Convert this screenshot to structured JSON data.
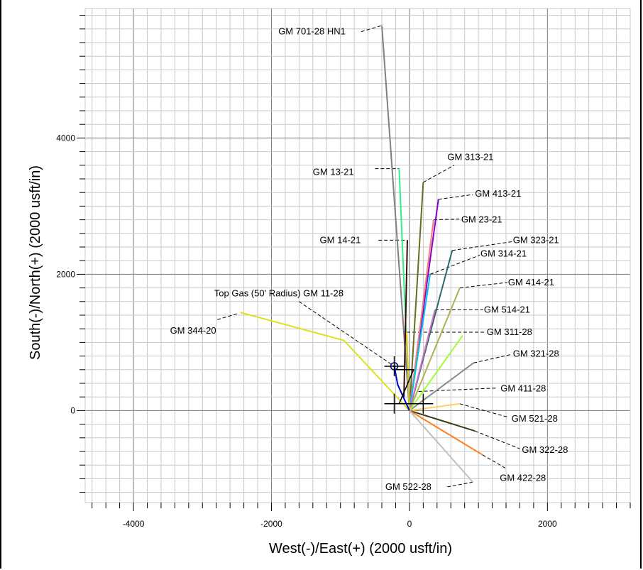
{
  "chart_data": {
    "type": "line",
    "title": "",
    "xlabel": "West(-)/East(+) (2000 usft/in)",
    "ylabel": "South(-)/North(+) (2000 usft/in)",
    "xlim": [
      -4700,
      3200
    ],
    "ylim": [
      -1350,
      5900
    ],
    "x_ticks": [
      -4000,
      -2000,
      0,
      2000
    ],
    "y_ticks": [
      0,
      2000,
      4000
    ],
    "x_tick_labels": [
      "-4000",
      "-2000",
      "0",
      "2000"
    ],
    "y_tick_labels": [
      "0",
      "2000",
      "4000"
    ],
    "grid": true,
    "series": [
      {
        "name": "GM 701-28 HN1",
        "color": "#808080",
        "points": [
          [
            0,
            0
          ],
          [
            -400,
            5650
          ]
        ],
        "label_pos": [
          -1900,
          5560
        ],
        "leader": [
          [
            -700,
            5560
          ],
          [
            -400,
            5650
          ]
        ]
      },
      {
        "name": "GM 13-21",
        "color": "#33ee88",
        "points": [
          [
            0,
            0
          ],
          [
            -150,
            3550
          ]
        ],
        "label_pos": [
          -1400,
          3500
        ],
        "leader": [
          [
            -500,
            3550
          ],
          [
            -150,
            3550
          ]
        ]
      },
      {
        "name": "GM 313-21",
        "color": "#6b6b20",
        "points": [
          [
            0,
            0
          ],
          [
            200,
            3350
          ]
        ],
        "label_pos": [
          550,
          3720
        ],
        "leader": [
          [
            200,
            3350
          ],
          [
            650,
            3600
          ]
        ]
      },
      {
        "name": "GM 413-21",
        "color": "#8a00c8",
        "points": [
          [
            0,
            0
          ],
          [
            420,
            3100
          ]
        ],
        "label_pos": [
          950,
          3180
        ],
        "leader": [
          [
            420,
            3100
          ],
          [
            920,
            3170
          ]
        ]
      },
      {
        "name": "GM 23-21",
        "color": "#f08080",
        "points": [
          [
            0,
            0
          ],
          [
            350,
            2800
          ]
        ],
        "label_pos": [
          750,
          2800
        ],
        "leader": [
          [
            350,
            2800
          ],
          [
            720,
            2810
          ]
        ]
      },
      {
        "name": "GM 14-21",
        "color": "#3a0a0a",
        "points": [
          [
            -80,
            200
          ],
          [
            -30,
            2500
          ]
        ],
        "label_pos": [
          -1300,
          2500
        ],
        "leader": [
          [
            -450,
            2500
          ],
          [
            -30,
            2500
          ]
        ]
      },
      {
        "name": "GM 323-21",
        "color": "#2a6a6a",
        "points": [
          [
            0,
            0
          ],
          [
            620,
            2350
          ]
        ],
        "label_pos": [
          1500,
          2500
        ],
        "leader": [
          [
            620,
            2350
          ],
          [
            1500,
            2480
          ]
        ]
      },
      {
        "name": "GM 314-21",
        "color": "#00c0f0",
        "points": [
          [
            0,
            0
          ],
          [
            300,
            2000
          ]
        ],
        "label_pos": [
          1030,
          2300
        ],
        "leader": [
          [
            300,
            2000
          ],
          [
            1020,
            2280
          ]
        ]
      },
      {
        "name": "GM 414-21",
        "color": "#b0b050",
        "points": [
          [
            0,
            0
          ],
          [
            730,
            1800
          ]
        ],
        "label_pos": [
          1430,
          1880
        ],
        "leader": [
          [
            730,
            1800
          ],
          [
            1420,
            1880
          ]
        ]
      },
      {
        "name": "GM 514-21",
        "color": "#d070c0",
        "points": [
          [
            0,
            0
          ],
          [
            370,
            1480
          ]
        ],
        "label_pos": [
          1080,
          1480
        ],
        "leader": [
          [
            370,
            1480
          ],
          [
            1070,
            1480
          ]
        ]
      },
      {
        "name": "GM 311-28",
        "color": "#e8c020",
        "points": [
          [
            0,
            0
          ],
          [
            -40,
            1150
          ]
        ],
        "label_pos": [
          1120,
          1150
        ],
        "leader": [
          [
            -40,
            1150
          ],
          [
            1100,
            1150
          ]
        ]
      },
      {
        "name": "GM 344-20",
        "color": "#e0e020",
        "points": [
          [
            0,
            0
          ],
          [
            -950,
            1030
          ],
          [
            -2450,
            1440
          ]
        ],
        "label_pos": [
          -3470,
          1170
        ],
        "leader": [
          [
            -2500,
            1420
          ],
          [
            -2800,
            1330
          ]
        ]
      },
      {
        "name": "GM 321-28",
        "color": "#8a8a8a",
        "points": [
          [
            0,
            0
          ],
          [
            930,
            700
          ]
        ],
        "label_pos": [
          1500,
          830
        ],
        "leader": [
          [
            930,
            700
          ],
          [
            1460,
            820
          ]
        ]
      },
      {
        "name": "GM 411-28",
        "color": "#99ff33",
        "points": [
          [
            0,
            0
          ],
          [
            770,
            1100
          ]
        ],
        "label_pos": [
          1320,
          320
        ],
        "leader": [
          [
            130,
            280
          ],
          [
            1250,
            330
          ]
        ]
      },
      {
        "name": "GM 521-28",
        "color": "#ffcc66",
        "points": [
          [
            0,
            0
          ],
          [
            730,
            100
          ]
        ],
        "label_pos": [
          1480,
          -120
        ],
        "leader": [
          [
            730,
            100
          ],
          [
            1440,
            -100
          ]
        ]
      },
      {
        "name": "GM 322-28",
        "color": "#3a3a10",
        "points": [
          [
            0,
            0
          ],
          [
            950,
            -300
          ]
        ],
        "label_pos": [
          1630,
          -580
        ],
        "leader": [
          [
            950,
            -300
          ],
          [
            1600,
            -560
          ]
        ]
      },
      {
        "name": "GM 422-28",
        "color": "#ff8020",
        "points": [
          [
            0,
            0
          ],
          [
            1060,
            -650
          ]
        ],
        "label_pos": [
          1310,
          -990
        ],
        "leader": [
          [
            1060,
            -650
          ],
          [
            1400,
            -850
          ]
        ]
      },
      {
        "name": "GM 522-28",
        "color": "#c0c0c0",
        "points": [
          [
            0,
            0
          ],
          [
            920,
            -1050
          ]
        ],
        "label_pos": [
          -350,
          -1120
        ],
        "leader": [
          [
            920,
            -1050
          ],
          [
            550,
            -1120
          ]
        ]
      },
      {
        "name": "Top Gas (50' Radius) GM 11-28",
        "color": "#0000cc",
        "points": [
          [
            0,
            0
          ],
          [
            -170,
            380
          ],
          [
            -220,
            650
          ]
        ],
        "label_pos": [
          -2830,
          1720
        ],
        "leader": [
          [
            -1600,
            1600
          ],
          [
            -220,
            650
          ]
        ]
      }
    ]
  }
}
